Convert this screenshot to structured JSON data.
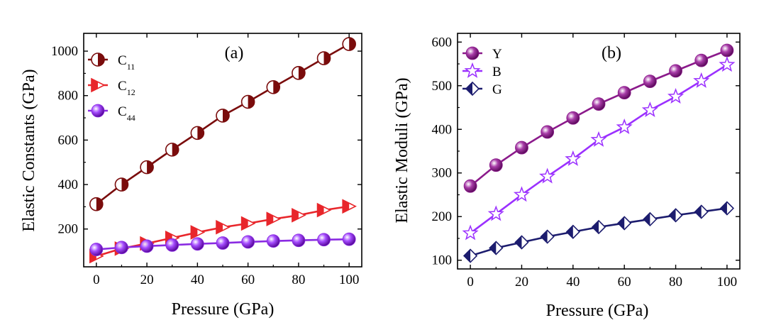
{
  "chart_data": [
    {
      "type": "line",
      "panel_label": "(a)",
      "xlabel": "Pressure (GPa)",
      "ylabel": "Elastic Constants (GPa)",
      "xlim": [
        -5,
        105
      ],
      "ylim": [
        30,
        1080
      ],
      "x_ticks": [
        0,
        20,
        40,
        60,
        80,
        100
      ],
      "y_ticks": [
        200,
        400,
        600,
        800,
        1000
      ],
      "legend_position": "top-left",
      "x": [
        0,
        10,
        20,
        30,
        40,
        50,
        60,
        70,
        80,
        90,
        100
      ],
      "series": [
        {
          "name": "C11",
          "name_main": "C",
          "name_sub": "11",
          "color": "#7a0c0c",
          "marker": "half-circle",
          "values": [
            312,
            400,
            478,
            557,
            632,
            710,
            772,
            838,
            902,
            968,
            1032
          ]
        },
        {
          "name": "C12",
          "name_main": "C",
          "name_sub": "12",
          "color": "#e8262b",
          "marker": "half-triangle",
          "values": [
            78,
            112,
            135,
            160,
            185,
            208,
            225,
            245,
            262,
            285,
            302
          ]
        },
        {
          "name": "C44",
          "name_main": "C",
          "name_sub": "44",
          "color": "#8a2be2",
          "marker": "sphere",
          "values": [
            108,
            117,
            123,
            128,
            133,
            137,
            142,
            146,
            149,
            152,
            154
          ]
        }
      ]
    },
    {
      "type": "line",
      "panel_label": "(b)",
      "xlabel": "Pressure (GPa)",
      "ylabel": "Elastic Moduli (GPa)",
      "xlim": [
        -5,
        105
      ],
      "ylim": [
        80,
        620
      ],
      "x_ticks": [
        0,
        20,
        40,
        60,
        80,
        100
      ],
      "y_ticks": [
        100,
        200,
        300,
        400,
        500,
        600
      ],
      "legend_position": "top-left",
      "x": [
        0,
        10,
        20,
        30,
        40,
        50,
        60,
        70,
        80,
        90,
        100
      ],
      "series": [
        {
          "name": "Y",
          "name_main": "Y",
          "name_sub": "",
          "color": "#8b1a8b",
          "marker": "sphere",
          "values": [
            270,
            318,
            358,
            394,
            426,
            458,
            484,
            510,
            534,
            558,
            581
          ]
        },
        {
          "name": "B",
          "name_main": "B",
          "name_sub": "",
          "color": "#9b30ff",
          "marker": "star",
          "values": [
            162,
            206,
            250,
            292,
            332,
            376,
            405,
            444,
            475,
            511,
            548
          ]
        },
        {
          "name": "G",
          "name_main": "G",
          "name_sub": "",
          "color": "#1c1c6e",
          "marker": "half-diamond",
          "values": [
            110,
            128,
            141,
            154,
            165,
            176,
            185,
            194,
            203,
            211,
            219
          ]
        }
      ]
    }
  ]
}
